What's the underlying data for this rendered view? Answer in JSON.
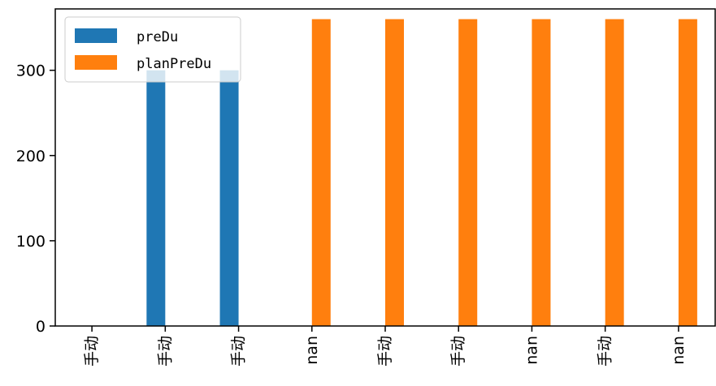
{
  "chart_data": {
    "type": "bar",
    "categories": [
      "手动",
      "手动",
      "手动",
      "nan",
      "手动",
      "手动",
      "nan",
      "手动",
      "nan"
    ],
    "series": [
      {
        "name": "preDu",
        "color": "#1f77b4",
        "values": [
          0,
          300,
          300,
          0,
          0,
          0,
          0,
          0,
          0
        ]
      },
      {
        "name": "planPreDu",
        "color": "#ff7f0e",
        "values": [
          0,
          0,
          0,
          360,
          360,
          360,
          360,
          360,
          360
        ]
      }
    ],
    "ylim": [
      0,
      372
    ],
    "yticks": [
      0,
      100,
      200,
      300
    ],
    "xlabel": "",
    "ylabel": "",
    "title": "",
    "grid": false,
    "legend_position": "top-left"
  }
}
